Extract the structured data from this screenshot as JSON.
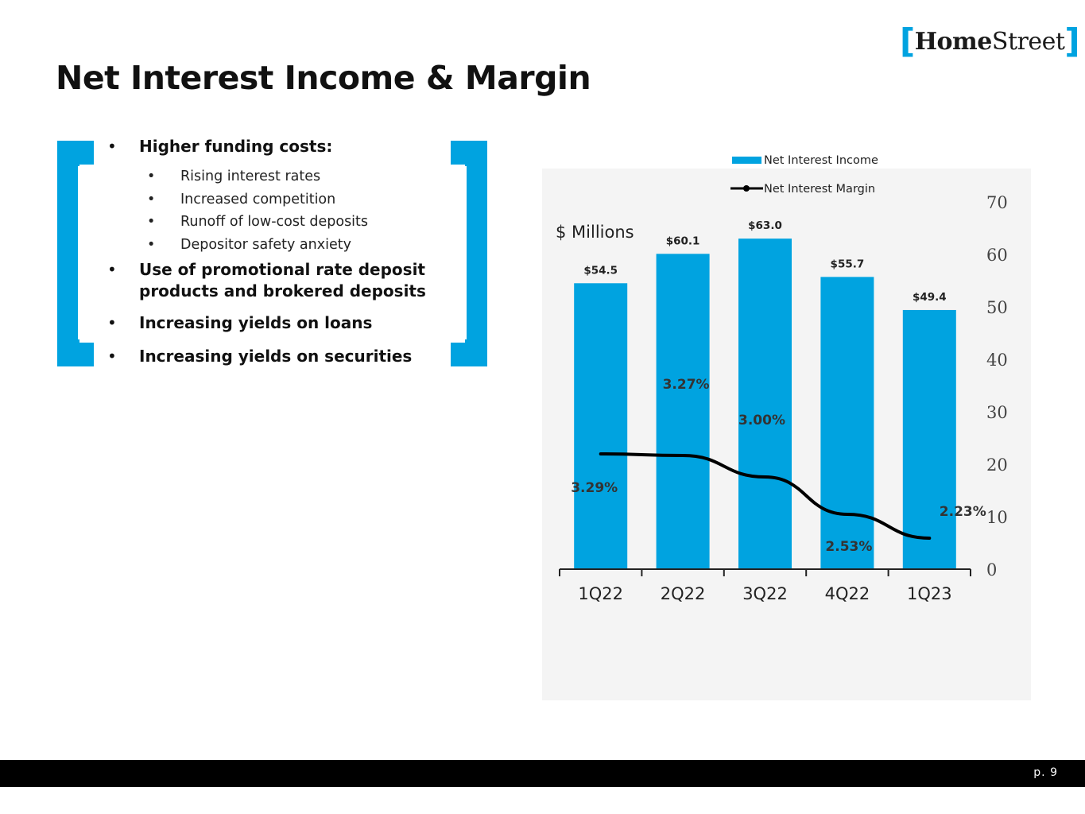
{
  "brand": {
    "logo_bracket_left": "[",
    "logo_part_bold": "Home",
    "logo_part_regular": "Street",
    "logo_bracket_right": "]",
    "accent_color": "#00a3e0"
  },
  "slide": {
    "title": "Net Interest Income & Margin",
    "page_label": "p. 9"
  },
  "bullets": {
    "marker": "•",
    "item1": "Higher funding costs:",
    "sub_items": [
      "Rising interest rates",
      "Increased competition",
      "Runoff of low-cost deposits",
      "Depositor safety anxiety"
    ],
    "item2": "Use of promotional rate deposit products and brokered deposits",
    "item3": "Increasing yields on loans",
    "item4": "Increasing yields on securities"
  },
  "chart_data": {
    "type": "bar",
    "categories": [
      "1Q22",
      "2Q22",
      "3Q22",
      "4Q22",
      "1Q23"
    ],
    "ylabel": "$ Millions",
    "ylim": [
      0,
      70
    ],
    "yticks": [
      0,
      10,
      20,
      30,
      40,
      50,
      60,
      70
    ],
    "grid": false,
    "legend_position": "top",
    "series": [
      {
        "name": "Net Interest Income",
        "kind": "bar",
        "color": "#00a3e0",
        "values": [
          54.5,
          60.1,
          63.0,
          55.7,
          49.4
        ],
        "labels": [
          "$54.5",
          "$60.1",
          "$63.0",
          "$55.7",
          "$49.4"
        ]
      },
      {
        "name": "Net Interest Margin",
        "kind": "line",
        "color": "#000000",
        "values": [
          3.29,
          3.27,
          3.0,
          2.53,
          2.23
        ],
        "labels": [
          "3.29%",
          "3.27%",
          "3.00%",
          "2.53%",
          "2.23%"
        ]
      }
    ]
  }
}
